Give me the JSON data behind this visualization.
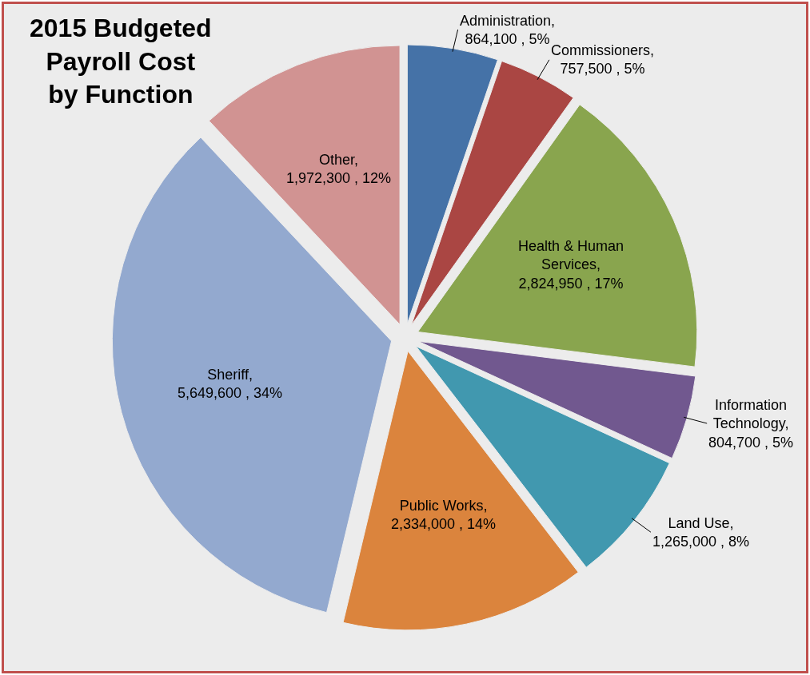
{
  "chart_data": {
    "type": "pie",
    "title": "2015 Budgeted\nPayroll Cost\nby Function",
    "categories": [
      "Administration",
      "Commissioners",
      "Health & Human Services",
      "Information Technology",
      "Land Use",
      "Public Works",
      "Sheriff",
      "Other"
    ],
    "values": [
      864100,
      757500,
      2824950,
      804700,
      1265000,
      2334000,
      5649600,
      1972300
    ],
    "value_labels": [
      ",\n864,100 , 5%",
      ",\n757,500 , 5%",
      ",\n2,824,950 , 17%",
      ",\n804,700 , 5%",
      ",\n1,265,000 , 8%",
      ",\n2,334,000 , 14%",
      ",\n5,649,600 , 34%",
      ",\n1,972,300 , 12%"
    ],
    "colors": [
      "#4572a7",
      "#aa4643",
      "#89a54e",
      "#71588f",
      "#4198af",
      "#db843d",
      "#93a9cf",
      "#d19392"
    ]
  }
}
